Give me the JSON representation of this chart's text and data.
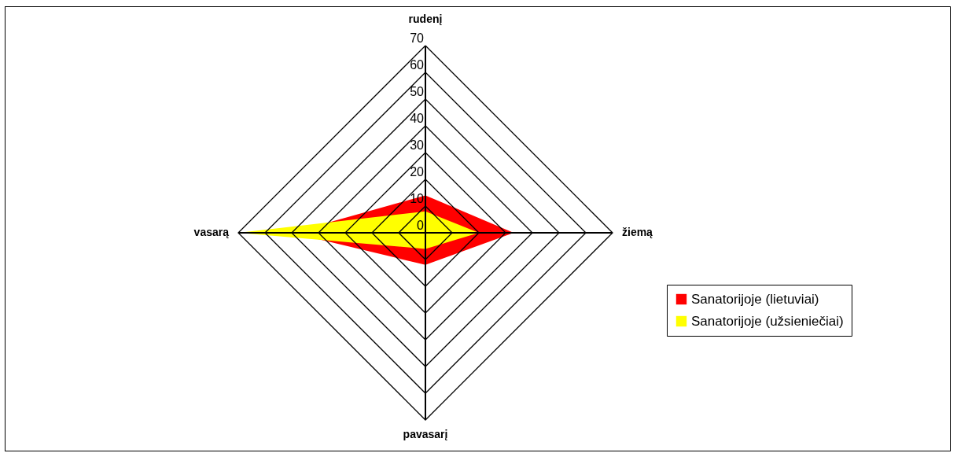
{
  "chart_data": {
    "type": "radar",
    "categories": [
      "rudenį",
      "žiemą",
      "pavasarį",
      "vasarą"
    ],
    "series": [
      {
        "name": "Sanatorijoje (lietuviai)",
        "color": "#ff0000",
        "values": [
          14,
          33,
          12,
          50
        ]
      },
      {
        "name": "Sanatorijoje (užsieniečiai)",
        "color": "#ffff00",
        "values": [
          8,
          20,
          6,
          70
        ]
      }
    ],
    "ylim": [
      0,
      70
    ],
    "yticks": [
      0,
      10,
      20,
      30,
      40,
      50,
      60,
      70
    ],
    "grid": true,
    "legend": "right"
  }
}
